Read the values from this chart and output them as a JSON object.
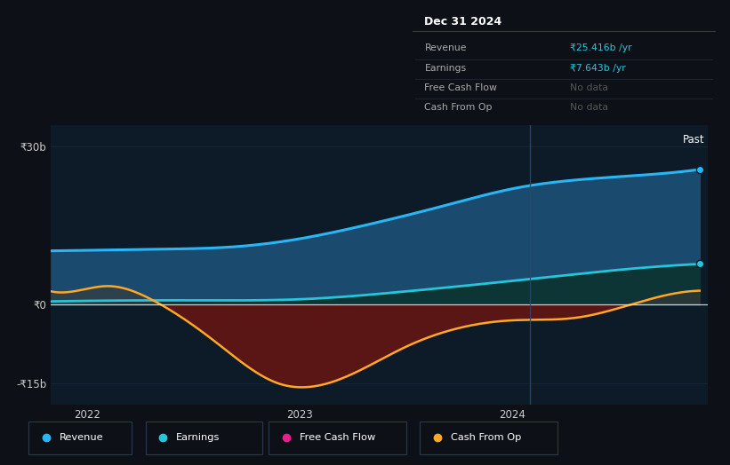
{
  "background_color": "#0d1117",
  "chart_bg_color": "#0d1a27",
  "y_labels": [
    "₹30b",
    "₹0",
    "-₹15b"
  ],
  "y_values": [
    30,
    0,
    -15
  ],
  "x_ticks": [
    2022,
    2023,
    2024
  ],
  "ylim": [
    -19,
    34
  ],
  "xlim_start": 2021.83,
  "xlim_end": 2024.92,
  "divider_x": 2024.08,
  "past_label": "Past",
  "tooltip": {
    "date": "Dec 31 2024",
    "revenue_label": "Revenue",
    "revenue_value": "₹25.416b /yr",
    "earnings_label": "Earnings",
    "earnings_value": "₹7.643b /yr",
    "fcf_label": "Free Cash Flow",
    "fcf_value": "No data",
    "cfo_label": "Cash From Op",
    "cfo_value": "No data"
  },
  "legend": [
    {
      "label": "Revenue",
      "color": "#29b6f6"
    },
    {
      "label": "Earnings",
      "color": "#26c6da"
    },
    {
      "label": "Free Cash Flow",
      "color": "#e91e8c"
    },
    {
      "label": "Cash From Op",
      "color": "#ffa726"
    }
  ],
  "revenue_color": "#29b6f6",
  "revenue_fill_top": "#1a4a6e",
  "revenue_fill_bot": "#0d2a40",
  "earnings_color": "#26c6da",
  "earnings_fill": "#0d3535",
  "cashfromop_color": "#ffa726",
  "cashfromop_fill": "#5a1515",
  "zero_line_color": "#e0e0e0",
  "divider_color": "#2a4a6a",
  "grid_line_color": "#1a3040"
}
